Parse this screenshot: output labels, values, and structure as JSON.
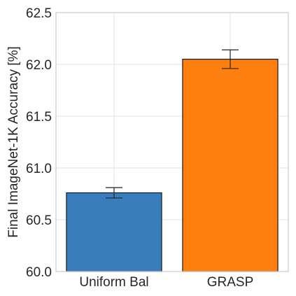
{
  "chart_data": {
    "type": "bar",
    "title": "",
    "xlabel": "",
    "ylabel": "Final ImageNet-1K Accuracy [%]",
    "ylim": [
      60.0,
      62.5
    ],
    "yticks": [
      "60.0",
      "60.5",
      "61.0",
      "61.5",
      "62.0",
      "62.5"
    ],
    "ytick_values": [
      60.0,
      60.5,
      61.0,
      61.5,
      62.0,
      62.5
    ],
    "categories": [
      "Uniform Bal",
      "GRASP"
    ],
    "values": [
      60.76,
      62.05
    ],
    "errors": [
      0.05,
      0.09
    ],
    "colors": [
      "#3a7dbd",
      "#ff7f0e"
    ],
    "grid": true,
    "legend": "none"
  }
}
